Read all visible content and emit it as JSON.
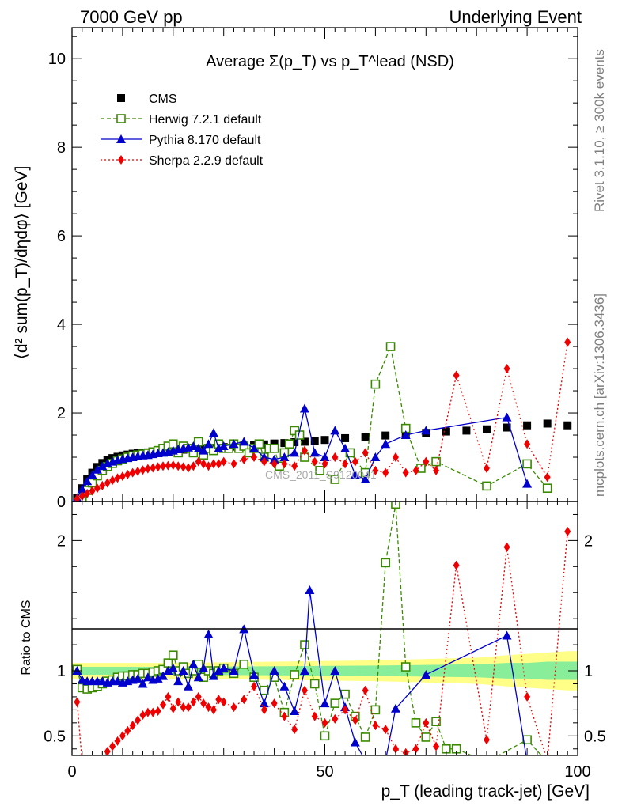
{
  "header": {
    "left": "7000 GeV pp",
    "right": "Underlying Event"
  },
  "side": {
    "rivet": "Rivet 3.1.10, ≥ 300k events",
    "mcplots": "mcplots.cern.ch [arXiv:1306.3436]"
  },
  "watermark": "CMS_2011_S9120041",
  "colors": {
    "cms": "#000000",
    "herwig": "#3a8a00",
    "pythia": "#0000cc",
    "sherpa": "#ee0000",
    "band_inner": "#88ee99",
    "band_outer": "#ffff88"
  },
  "chart_data": [
    {
      "type": "scatter",
      "panel": "main",
      "title": "Average Σ(p_T) vs p_T^lead (NSD)",
      "ylabel": "⟨d² sum(p_T)/dηdφ⟩ [GeV]",
      "xlim": [
        0,
        100
      ],
      "ylim": [
        0,
        10.7
      ],
      "yticks": [
        0,
        2,
        4,
        6,
        8,
        10
      ],
      "legend_position": "top-left",
      "series": [
        {
          "name": "CMS",
          "style": "marker",
          "marker": "square-filled",
          "x": [
            1,
            2,
            3,
            4,
            5,
            6,
            7,
            8,
            9,
            10,
            11,
            12,
            13,
            14,
            15,
            16,
            17,
            18,
            19,
            20,
            22,
            24,
            26,
            28,
            30,
            32,
            34,
            36,
            38,
            40,
            42,
            44,
            46,
            48,
            50,
            54,
            58,
            62,
            66,
            70,
            74,
            78,
            82,
            86,
            90,
            94,
            98
          ],
          "y": [
            0.08,
            0.3,
            0.5,
            0.65,
            0.78,
            0.87,
            0.93,
            0.98,
            1.01,
            1.04,
            1.06,
            1.08,
            1.09,
            1.1,
            1.11,
            1.12,
            1.13,
            1.14,
            1.15,
            1.16,
            1.17,
            1.19,
            1.2,
            1.21,
            1.23,
            1.24,
            1.26,
            1.27,
            1.29,
            1.31,
            1.32,
            1.34,
            1.35,
            1.37,
            1.39,
            1.43,
            1.46,
            1.49,
            1.52,
            1.55,
            1.58,
            1.6,
            1.63,
            1.67,
            1.72,
            1.76,
            1.72
          ]
        },
        {
          "name": "Herwig 7.2.1 default",
          "style": "dashed",
          "marker": "square-open",
          "x": [
            2,
            3,
            4,
            5,
            6,
            7,
            8,
            9,
            10,
            11,
            12,
            13,
            14,
            15,
            16,
            17,
            18,
            19,
            20,
            21,
            22,
            23,
            24,
            25,
            26,
            27,
            28,
            29,
            30,
            31,
            32,
            33,
            34,
            35,
            36,
            37,
            38,
            39,
            40,
            41,
            42,
            43,
            44,
            45,
            46,
            49,
            52,
            55,
            58,
            60,
            63,
            66,
            69,
            72,
            82,
            90,
            94
          ],
          "y": [
            0.08,
            0.25,
            0.42,
            0.58,
            0.7,
            0.79,
            0.86,
            0.92,
            0.96,
            1.0,
            1.03,
            1.05,
            1.07,
            1.09,
            1.12,
            1.15,
            1.2,
            1.25,
            1.3,
            1.1,
            1.25,
            1.2,
            1.1,
            1.35,
            1.05,
            1.2,
            1.15,
            1.3,
            1.2,
            1.2,
            1.3,
            1.2,
            1.25,
            1.1,
            1.2,
            1.3,
            1.0,
            1.2,
            1.2,
            0.8,
            1.1,
            1.3,
            1.6,
            1.5,
            1.0,
            0.7,
            0.5,
            1.1,
            0.65,
            2.65,
            3.5,
            1.65,
            0.75,
            0.9,
            0.35,
            0.85,
            0.3
          ]
        },
        {
          "name": "Pythia 8.170 default",
          "style": "solid",
          "marker": "triangle-filled",
          "x": [
            1,
            2,
            3,
            4,
            5,
            6,
            7,
            8,
            9,
            10,
            11,
            12,
            13,
            14,
            15,
            16,
            17,
            18,
            19,
            20,
            21,
            22,
            23,
            24,
            25,
            26,
            27,
            28,
            29,
            30,
            32,
            34,
            36,
            38,
            40,
            42,
            44,
            46,
            48,
            50,
            52,
            54,
            56,
            58,
            60,
            62,
            66,
            70,
            86,
            90
          ],
          "y": [
            0.08,
            0.28,
            0.46,
            0.6,
            0.72,
            0.8,
            0.86,
            0.9,
            0.93,
            0.96,
            0.98,
            1.0,
            1.02,
            1.04,
            1.05,
            1.07,
            1.09,
            1.1,
            1.12,
            1.15,
            1.18,
            1.2,
            1.22,
            1.25,
            1.2,
            1.15,
            1.3,
            1.55,
            1.2,
            1.25,
            1.3,
            1.35,
            1.2,
            1.0,
            0.95,
            1.0,
            1.1,
            2.1,
            1.1,
            1.0,
            1.6,
            1.2,
            0.6,
            0.5,
            1.0,
            1.3,
            1.5,
            1.6,
            1.9,
            0.4
          ]
        },
        {
          "name": "Sherpa 2.2.9 default",
          "style": "dotted",
          "marker": "diamond-filled",
          "x": [
            1,
            2,
            3,
            4,
            5,
            6,
            7,
            8,
            9,
            10,
            11,
            12,
            13,
            14,
            15,
            16,
            17,
            18,
            19,
            20,
            21,
            22,
            23,
            24,
            25,
            26,
            27,
            28,
            29,
            30,
            32,
            34,
            36,
            38,
            40,
            42,
            44,
            46,
            48,
            50,
            52,
            54,
            56,
            58,
            60,
            62,
            64,
            66,
            68,
            70,
            72,
            76,
            82,
            86,
            90,
            94,
            98
          ],
          "y": [
            0.06,
            0.12,
            0.18,
            0.24,
            0.3,
            0.36,
            0.42,
            0.48,
            0.53,
            0.57,
            0.61,
            0.65,
            0.68,
            0.71,
            0.74,
            0.76,
            0.78,
            0.8,
            0.81,
            0.82,
            0.8,
            0.78,
            0.76,
            0.8,
            0.9,
            0.85,
            0.8,
            0.85,
            0.85,
            0.9,
            0.85,
            0.95,
            1.0,
            0.9,
            0.85,
            0.85,
            0.8,
            1.15,
            0.9,
            0.85,
            1.0,
            0.85,
            0.9,
            1.1,
            0.7,
            0.65,
            1.0,
            0.65,
            0.7,
            0.9,
            0.7,
            2.85,
            0.75,
            3.0,
            1.3,
            0.55,
            3.6
          ]
        }
      ]
    },
    {
      "type": "scatter",
      "panel": "ratio",
      "ylabel": "Ratio to CMS",
      "xlabel": "p_T (leading track-jet) [GeV]",
      "xlim": [
        0,
        100
      ],
      "ylim": [
        0.35,
        2.3
      ],
      "yticks": [
        0.5,
        1,
        2
      ],
      "xticks": [
        0,
        50,
        100
      ],
      "reference_band": {
        "x": [
          0,
          20,
          40,
          60,
          70,
          80,
          86,
          90,
          94,
          98,
          100
        ],
        "inner": [
          0.03,
          0.03,
          0.035,
          0.04,
          0.045,
          0.05,
          0.06,
          0.06,
          0.07,
          0.07,
          0.07
        ],
        "outer": [
          0.06,
          0.06,
          0.07,
          0.08,
          0.09,
          0.1,
          0.12,
          0.13,
          0.14,
          0.15,
          0.15
        ]
      },
      "series": [
        {
          "name": "Herwig 7.2.1 default",
          "x": [
            1,
            2,
            3,
            4,
            5,
            6,
            7,
            8,
            9,
            10,
            11,
            12,
            13,
            14,
            15,
            16,
            17,
            18,
            19,
            20,
            21,
            22,
            23,
            24,
            25,
            26,
            27,
            28,
            29,
            30,
            32,
            34,
            36,
            38,
            40,
            42,
            44,
            46,
            48,
            50,
            52,
            54,
            56,
            58,
            60,
            62,
            64,
            66,
            68,
            70,
            72,
            74,
            76,
            82,
            90,
            94
          ],
          "y": [
            1.01,
            0.87,
            0.86,
            0.87,
            0.88,
            0.9,
            0.92,
            0.93,
            0.95,
            0.96,
            0.96,
            0.97,
            0.97,
            0.98,
            0.98,
            0.99,
            1.0,
            1.01,
            1.06,
            1.12,
            1.0,
            1.03,
            0.98,
            1.0,
            1.05,
            0.95,
            1.0,
            0.98,
            1.0,
            1.02,
            0.98,
            1.05,
            0.95,
            0.85,
            0.95,
            0.68,
            0.97,
            1.2,
            0.9,
            0.5,
            0.75,
            0.82,
            0.65,
            0.49,
            0.7,
            1.83,
            2.28,
            1.03,
            0.6,
            0.49,
            0.61,
            0.4,
            0.4,
            0.3,
            0.47,
            0.3
          ]
        },
        {
          "name": "Pythia 8.170 default",
          "x": [
            1,
            2,
            3,
            4,
            5,
            6,
            7,
            8,
            9,
            10,
            11,
            12,
            13,
            14,
            15,
            16,
            17,
            18,
            19,
            20,
            21,
            22,
            23,
            24,
            25,
            26,
            27,
            28,
            29,
            30,
            32,
            34,
            36,
            38,
            40,
            42,
            44,
            46,
            47,
            50,
            52,
            54,
            56,
            58,
            60,
            62,
            64,
            70,
            86,
            90
          ],
          "y": [
            1.0,
            0.93,
            0.92,
            0.92,
            0.92,
            0.92,
            0.91,
            0.92,
            0.92,
            0.91,
            0.92,
            0.93,
            0.94,
            0.9,
            0.95,
            0.93,
            0.94,
            0.96,
            1.0,
            1.02,
            0.92,
            1.0,
            0.88,
            1.05,
            0.95,
            1.02,
            1.28,
            0.96,
            1.0,
            1.02,
            1.0,
            1.32,
            0.97,
            0.75,
            1.0,
            0.88,
            0.69,
            1.0,
            1.62,
            0.75,
            1.0,
            0.72,
            0.45,
            0.31,
            0.3,
            0.31,
            0.71,
            0.97,
            1.27,
            0.3
          ]
        },
        {
          "name": "Sherpa 2.2.9 default",
          "x": [
            1,
            2,
            3,
            4,
            5,
            6,
            7,
            8,
            9,
            10,
            11,
            12,
            13,
            14,
            15,
            16,
            17,
            18,
            19,
            20,
            21,
            22,
            23,
            24,
            25,
            26,
            27,
            28,
            29,
            30,
            32,
            34,
            36,
            38,
            40,
            42,
            44,
            46,
            48,
            50,
            52,
            54,
            56,
            58,
            60,
            62,
            64,
            66,
            68,
            70,
            72,
            76,
            82,
            86,
            90,
            94,
            98
          ],
          "y": [
            0.76,
            0.3,
            0.3,
            0.3,
            0.3,
            0.32,
            0.38,
            0.42,
            0.46,
            0.5,
            0.54,
            0.58,
            0.62,
            0.66,
            0.68,
            0.68,
            0.69,
            0.74,
            0.8,
            0.71,
            0.76,
            0.72,
            0.72,
            0.76,
            0.8,
            0.75,
            0.72,
            0.7,
            0.78,
            0.76,
            0.72,
            0.78,
            0.88,
            0.7,
            0.75,
            0.65,
            0.55,
            0.85,
            0.65,
            0.6,
            0.63,
            0.7,
            0.62,
            0.85,
            0.58,
            0.55,
            0.4,
            0.37,
            0.4,
            0.6,
            0.42,
            1.81,
            0.47,
            1.95,
            0.8,
            0.31,
            2.07
          ]
        }
      ]
    }
  ]
}
